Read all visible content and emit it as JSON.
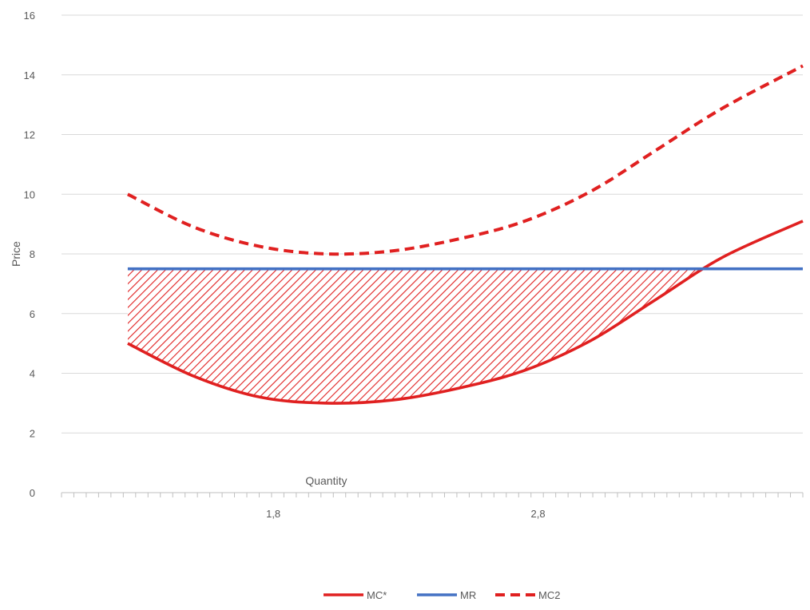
{
  "chart_data": {
    "type": "line",
    "title": "",
    "xlabel": "Quantity",
    "ylabel": "Price",
    "ylim": [
      0,
      16
    ],
    "y_ticks": [
      0,
      2,
      4,
      6,
      8,
      10,
      12,
      14,
      16
    ],
    "xlim": [
      1,
      3.8
    ],
    "x": [
      1.25,
      1.5,
      1.75,
      2.0,
      2.25,
      2.5,
      2.75,
      3.0,
      3.25,
      3.5,
      3.8
    ],
    "x_tick_labels": [
      {
        "x": 1.8,
        "label": "1,8"
      },
      {
        "x": 2.8,
        "label": "2,8"
      }
    ],
    "grid": "horizontal",
    "legend": "bottom-center",
    "series": [
      {
        "name": "MC*",
        "style": "solid",
        "color": "#e02020",
        "values": [
          5.0,
          3.9,
          3.2,
          3.0,
          3.1,
          3.5,
          4.1,
          5.1,
          6.5,
          7.9,
          9.1
        ]
      },
      {
        "name": "MR",
        "style": "solid",
        "color": "#4472c4",
        "values": [
          7.5,
          7.5,
          7.5,
          7.5,
          7.5,
          7.5,
          7.5,
          7.5,
          7.5,
          7.5,
          7.5
        ]
      },
      {
        "name": "MC2",
        "style": "dashed",
        "color": "#e02020",
        "values": [
          10.0,
          8.9,
          8.25,
          8.0,
          8.1,
          8.5,
          9.1,
          10.1,
          11.5,
          12.9,
          14.3
        ]
      }
    ],
    "shaded_region": {
      "between": [
        "MR",
        "MC*"
      ],
      "pattern": "diagonal-hatch",
      "color": "#e02020"
    }
  }
}
